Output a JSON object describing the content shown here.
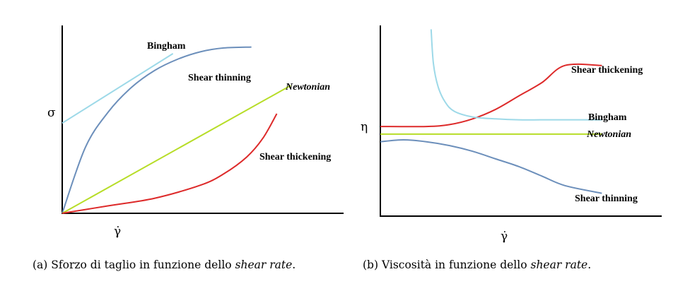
{
  "chart_data": [
    {
      "type": "line",
      "ylabel": "σ",
      "xlabel": "γ̇",
      "xlim": [
        0,
        10
      ],
      "ylim": [
        0,
        10
      ],
      "grid": false,
      "caption": {
        "prefix": "(a) Sforzo di taglio in funzione dello ",
        "emphasis": "shear rate",
        "suffix": "."
      },
      "series": [
        {
          "name": "Bingham",
          "label_style": "bold",
          "color": "#9dd9e8",
          "x": [
            0,
            4.8
          ],
          "y": [
            4.8,
            8.5
          ]
        },
        {
          "name": "Shear thinning",
          "label_style": "bold",
          "color": "#6c8fbb",
          "x": [
            0,
            1,
            2,
            3,
            4,
            5,
            6,
            7,
            8.2
          ],
          "y": [
            0,
            3.5,
            5.4,
            6.7,
            7.6,
            8.2,
            8.6,
            8.8,
            8.85
          ]
        },
        {
          "name": "Newtonian",
          "label_style": "bold-italic",
          "color": "#b7dd28",
          "x": [
            0,
            9.9
          ],
          "y": [
            0,
            6.8
          ]
        },
        {
          "name": "Shear thickening",
          "label_style": "bold",
          "color": "#dd2a2a",
          "x": [
            0,
            2,
            4,
            6,
            7,
            8,
            8.7,
            9.3
          ],
          "y": [
            0,
            0.4,
            0.8,
            1.5,
            2.1,
            3.0,
            4.0,
            5.3
          ]
        }
      ]
    },
    {
      "type": "line",
      "ylabel": "η",
      "xlabel": "γ̇",
      "xlim": [
        0,
        10
      ],
      "ylim": [
        0,
        10
      ],
      "grid": false,
      "caption": {
        "prefix": "(b) Viscosità in funzione dello ",
        "emphasis": "shear rate",
        "suffix": "."
      },
      "series": [
        {
          "name": "Shear thickening",
          "label_style": "bold",
          "color": "#dd2a2a",
          "x": [
            0,
            2,
            3,
            4,
            5,
            6,
            7,
            8,
            9.6
          ],
          "y": [
            4.7,
            4.7,
            4.8,
            5.1,
            5.6,
            6.3,
            7.0,
            7.9,
            7.9
          ]
        },
        {
          "name": "Bingham",
          "label_style": "bold",
          "color": "#9dd9e8",
          "x": [
            2.2,
            2.3,
            2.5,
            2.8,
            3.2,
            4,
            5,
            6,
            7,
            8,
            9.6
          ],
          "y": [
            9.8,
            8.0,
            6.8,
            6.0,
            5.5,
            5.2,
            5.1,
            5.05,
            5.05,
            5.05,
            5.05
          ]
        },
        {
          "name": "Newtonian",
          "label_style": "bold-italic",
          "color": "#b7dd28",
          "x": [
            0,
            9.6
          ],
          "y": [
            4.3,
            4.3
          ]
        },
        {
          "name": "Shear thinning",
          "label_style": "bold",
          "color": "#6c8fbb",
          "x": [
            0,
            1,
            2,
            3,
            4,
            5,
            6,
            7,
            8,
            9.6
          ],
          "y": [
            3.9,
            4.0,
            3.9,
            3.7,
            3.4,
            3.0,
            2.6,
            2.1,
            1.6,
            1.2
          ]
        }
      ]
    }
  ]
}
